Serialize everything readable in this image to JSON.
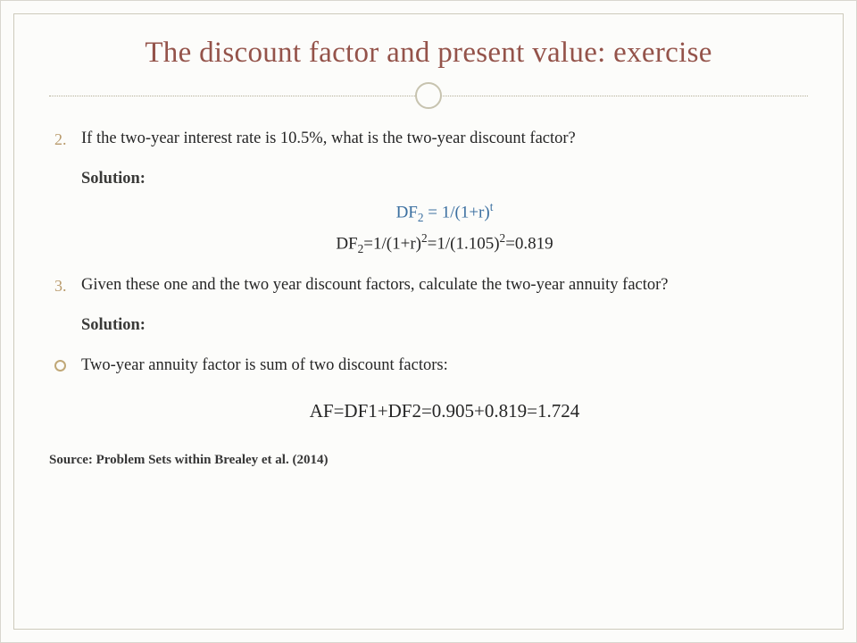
{
  "colors": {
    "background": "#fcfcfa",
    "frame_border": "#cdcabb",
    "title": "#94534a",
    "separator_dot": "#b2ad96",
    "separator_circle": "#c7c3af",
    "marker_accent": "#b99b6c",
    "body_text": "#262626",
    "formula_blue": "#3b6fa0"
  },
  "typography": {
    "title_fontsize": 33,
    "body_fontsize": 18.5,
    "formula_fontsize": 19,
    "af_fontsize": 21,
    "source_fontsize": 15,
    "font_family": "Georgia, serif"
  },
  "title": "The discount factor and present value: exercise",
  "items": {
    "q2": {
      "marker": "2.",
      "text": "If the two-year interest rate is 10.5%, what is the two-year discount factor?",
      "solution_label": "Solution:",
      "formula_general_html": "DF<sub>2</sub> = 1/(1+r)<sup>t</sup>",
      "formula_numeric_html": "DF<sub>2</sub>=1/(1+r)<sup>2</sup>=1/(1.105)<sup>2</sup>=0.819"
    },
    "q3": {
      "marker": "3.",
      "text": "Given these one and the two year discount factors, calculate the two-year annuity factor?",
      "solution_label": "Solution:"
    },
    "bullet": {
      "text": "Two-year annuity factor is sum of two discount factors:"
    },
    "af_formula": "AF=DF1+DF2=0.905+0.819=1.724"
  },
  "source": "Source: Problem Sets within Brealey et al. (2014)"
}
